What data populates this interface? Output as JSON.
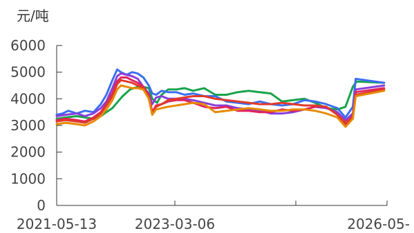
{
  "chart_data": {
    "type": "line",
    "title": "",
    "ylabel": "元/吨",
    "xlabel": "",
    "ylim": [
      0,
      6000
    ],
    "yticks": [
      0,
      1000,
      2000,
      3000,
      4000,
      5000,
      6000
    ],
    "xlim": [
      "2021-05-13",
      "2026-05-01"
    ],
    "xtick_labels": [
      "2021-05-13",
      "2023-03-06",
      "2026-05-"
    ],
    "grid": false,
    "legend": "none",
    "series": [
      {
        "color": "#17a34a",
        "x": [
          "2021-05-13",
          "2021-07-01",
          "2021-09-01",
          "2021-10-15",
          "2021-12-01",
          "2022-01-10",
          "2022-02-10",
          "2022-03-15",
          "2022-04-15",
          "2022-05-10",
          "2022-06-20",
          "2022-08-01",
          "2022-09-01",
          "2022-10-01",
          "2022-10-20",
          "2022-11-15",
          "2022-12-10",
          "2023-01-15",
          "2023-03-01",
          "2023-04-15",
          "2023-06-01",
          "2023-08-01",
          "2023-10-01",
          "2023-12-01",
          "2024-02-01",
          "2024-04-01",
          "2024-06-01",
          "2024-08-01",
          "2024-10-01",
          "2024-12-01",
          "2025-02-01",
          "2025-04-01",
          "2025-06-01",
          "2025-08-01",
          "2025-09-15",
          "2025-10-25",
          "2025-11-15",
          "2026-04-15"
        ],
        "y": [
          3250,
          3300,
          3350,
          3300,
          3250,
          3350,
          3500,
          3650,
          3900,
          4100,
          4350,
          4450,
          4450,
          4400,
          4000,
          3850,
          4150,
          4350,
          4350,
          4400,
          4300,
          4400,
          4150,
          4150,
          4250,
          4300,
          4250,
          4200,
          3900,
          3950,
          4000,
          3850,
          3650,
          3600,
          3700,
          4450,
          4650,
          4600
        ]
      },
      {
        "color": "#3b6ef0",
        "x": [
          "2021-05-13",
          "2021-06-15",
          "2021-07-15",
          "2021-09-01",
          "2021-10-15",
          "2021-12-01",
          "2022-01-10",
          "2022-02-10",
          "2022-03-15",
          "2022-04-10",
          "2022-05-01",
          "2022-06-01",
          "2022-07-01",
          "2022-08-01",
          "2022-09-01",
          "2022-10-01",
          "2022-10-20",
          "2022-11-10",
          "2022-12-10",
          "2023-01-15",
          "2023-03-01",
          "2023-04-15",
          "2023-06-01",
          "2023-08-01",
          "2023-10-01",
          "2023-12-01",
          "2024-02-01",
          "2024-04-01",
          "2024-06-01",
          "2024-08-01",
          "2024-10-01",
          "2024-12-01",
          "2025-02-01",
          "2025-04-01",
          "2025-06-01",
          "2025-08-01",
          "2025-09-15",
          "2025-10-25",
          "2025-11-10",
          "2026-04-15"
        ],
        "y": [
          3400,
          3450,
          3550,
          3450,
          3550,
          3500,
          3800,
          4150,
          4700,
          5100,
          5000,
          4900,
          5000,
          4950,
          4800,
          4500,
          4200,
          4150,
          4300,
          4250,
          4250,
          4150,
          4200,
          4100,
          4100,
          3900,
          3850,
          3800,
          3900,
          3800,
          3750,
          3800,
          3950,
          3900,
          3800,
          3650,
          3300,
          3700,
          4750,
          4600
        ]
      },
      {
        "color": "#8a3fd9",
        "x": [
          "2021-05-13",
          "2021-07-01",
          "2021-09-01",
          "2021-10-15",
          "2021-12-01",
          "2022-01-10",
          "2022-02-10",
          "2022-03-15",
          "2022-04-10",
          "2022-05-01",
          "2022-06-01",
          "2022-07-01",
          "2022-08-01",
          "2022-09-01",
          "2022-10-01",
          "2022-10-20",
          "2022-11-10",
          "2022-12-10",
          "2023-01-15",
          "2023-03-01",
          "2023-04-15",
          "2023-06-01",
          "2023-08-01",
          "2023-10-01",
          "2023-12-01",
          "2024-02-01",
          "2024-04-01",
          "2024-06-01",
          "2024-08-01",
          "2024-10-01",
          "2024-12-01",
          "2025-02-01",
          "2025-04-01",
          "2025-06-01",
          "2025-08-01",
          "2025-09-15",
          "2025-10-25",
          "2025-11-10",
          "2026-04-15"
        ],
        "y": [
          3350,
          3400,
          3450,
          3350,
          3450,
          3650,
          3900,
          4400,
          4850,
          4950,
          4900,
          4850,
          4750,
          4450,
          4200,
          3800,
          4050,
          4100,
          4000,
          4000,
          4000,
          3950,
          3850,
          3750,
          3750,
          3650,
          3600,
          3550,
          3450,
          3450,
          3500,
          3600,
          3700,
          3650,
          3500,
          3200,
          3450,
          4350,
          4500
        ]
      },
      {
        "color": "#e0245e",
        "x": [
          "2021-05-13",
          "2021-07-01",
          "2021-09-01",
          "2021-10-15",
          "2021-12-01",
          "2022-01-10",
          "2022-02-10",
          "2022-03-15",
          "2022-04-10",
          "2022-05-01",
          "2022-06-01",
          "2022-07-01",
          "2022-08-01",
          "2022-09-01",
          "2022-10-01",
          "2022-10-20",
          "2022-11-10",
          "2022-12-10",
          "2023-01-15",
          "2023-03-01",
          "2023-04-15",
          "2023-06-01",
          "2023-08-01",
          "2023-10-01",
          "2023-12-01",
          "2024-02-01",
          "2024-04-01",
          "2024-06-01",
          "2024-08-01",
          "2024-10-01",
          "2024-12-01",
          "2025-02-01",
          "2025-04-01",
          "2025-06-01",
          "2025-08-01",
          "2025-09-15",
          "2025-10-25",
          "2025-11-10",
          "2026-04-15"
        ],
        "y": [
          3200,
          3250,
          3200,
          3150,
          3300,
          3500,
          3800,
          4200,
          4650,
          4800,
          4800,
          4700,
          4600,
          4450,
          4150,
          3500,
          3750,
          3800,
          3900,
          3950,
          3950,
          3850,
          3700,
          3650,
          3700,
          3550,
          3550,
          3500,
          3500,
          3600,
          3550,
          3600,
          3700,
          3700,
          3400,
          3050,
          3350,
          4250,
          4400
        ]
      },
      {
        "color": "#e03a2a",
        "x": [
          "2021-05-13",
          "2021-07-01",
          "2021-09-01",
          "2021-10-15",
          "2021-12-01",
          "2022-01-10",
          "2022-02-10",
          "2022-03-15",
          "2022-04-10",
          "2022-05-01",
          "2022-06-01",
          "2022-07-01",
          "2022-08-01",
          "2022-09-01",
          "2022-10-01",
          "2022-10-20",
          "2022-11-10",
          "2022-12-10",
          "2023-01-15",
          "2023-03-01",
          "2023-04-15",
          "2023-06-01",
          "2023-08-01",
          "2023-10-01",
          "2023-12-01",
          "2024-02-01",
          "2024-04-01",
          "2024-06-01",
          "2024-08-01",
          "2024-10-01",
          "2024-12-01",
          "2025-02-01",
          "2025-04-01",
          "2025-06-01",
          "2025-08-01",
          "2025-09-15",
          "2025-10-25",
          "2025-11-10",
          "2026-04-15"
        ],
        "y": [
          3150,
          3200,
          3150,
          3100,
          3250,
          3450,
          3750,
          4100,
          4550,
          4700,
          4650,
          4600,
          4500,
          4400,
          4050,
          3450,
          3700,
          3800,
          3950,
          4000,
          4050,
          4100,
          4100,
          4000,
          3950,
          3900,
          3850,
          3800,
          3800,
          3850,
          3800,
          3750,
          3750,
          3700,
          3400,
          3100,
          3350,
          4150,
          4350
        ]
      },
      {
        "color": "#e68a00",
        "x": [
          "2021-05-13",
          "2021-07-01",
          "2021-09-01",
          "2021-10-15",
          "2021-12-01",
          "2022-01-10",
          "2022-02-10",
          "2022-03-15",
          "2022-04-10",
          "2022-05-01",
          "2022-06-01",
          "2022-07-01",
          "2022-08-01",
          "2022-09-01",
          "2022-10-01",
          "2022-10-20",
          "2022-11-10",
          "2022-12-10",
          "2023-01-15",
          "2023-03-01",
          "2023-04-15",
          "2023-06-01",
          "2023-08-01",
          "2023-10-01",
          "2023-12-01",
          "2024-02-01",
          "2024-04-01",
          "2024-06-01",
          "2024-08-01",
          "2024-10-01",
          "2024-12-01",
          "2025-02-01",
          "2025-04-01",
          "2025-06-01",
          "2025-08-01",
          "2025-09-15",
          "2025-10-25",
          "2025-11-10",
          "2026-04-15"
        ],
        "y": [
          3050,
          3100,
          3050,
          3000,
          3150,
          3350,
          3600,
          3950,
          4350,
          4500,
          4450,
          4400,
          4400,
          4350,
          4000,
          3400,
          3600,
          3650,
          3700,
          3750,
          3800,
          3850,
          3800,
          3500,
          3550,
          3600,
          3650,
          3600,
          3550,
          3550,
          3600,
          3600,
          3550,
          3450,
          3300,
          2950,
          3250,
          4100,
          4300
        ]
      }
    ]
  }
}
